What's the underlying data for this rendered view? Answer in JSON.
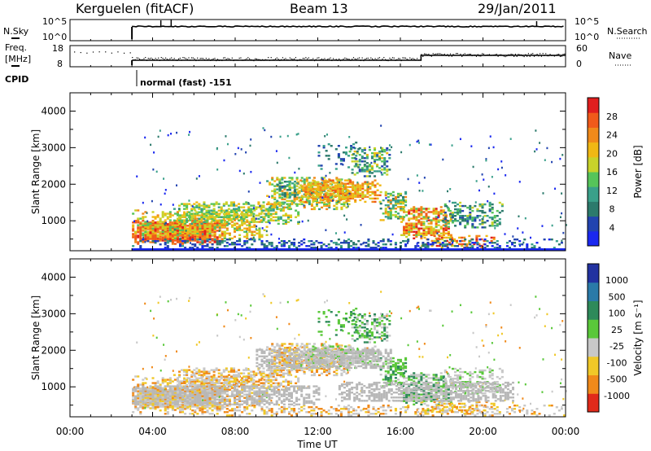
{
  "header": {
    "station": "Kerguelen (fitACF)",
    "beam": "Beam 13",
    "date": "29/Jan/2011"
  },
  "noise_panel": {
    "left_label": "N.Sky",
    "right_label": "N.Search",
    "tick_top": "10^5",
    "tick_bottom": "10^0"
  },
  "freq_panel": {
    "left_label_1": "Freq.",
    "left_label_2": "[MHz]",
    "left_ticks": [
      "18",
      "8"
    ],
    "right_ticks": [
      "60",
      "0"
    ],
    "right_label": "Nave"
  },
  "cpid": {
    "label": "CPID",
    "value": "normal (fast) -151"
  },
  "chart_data": [
    {
      "type": "heatmap",
      "title": "",
      "xlabel": "",
      "ylabel": "Slant Range [km]",
      "xlim": [
        0,
        24
      ],
      "ylim": [
        180,
        4500
      ],
      "y_ticks": [
        "1000",
        "2000",
        "3000",
        "4000"
      ],
      "colorbar": {
        "label": "Power [dB]",
        "ticks": [
          "4",
          "8",
          "12",
          "16",
          "20",
          "24",
          "28"
        ],
        "colors": [
          "#1a28f0",
          "#2244b0",
          "#2c7a6c",
          "#3aa08a",
          "#56c45a",
          "#c8d22a",
          "#f0b814",
          "#f08a1a",
          "#f05a1a",
          "#e01e1e"
        ]
      },
      "data_start_hour": 3
    },
    {
      "type": "heatmap",
      "title": "",
      "xlabel": "Time UT",
      "ylabel": "Slant Range [km]",
      "xlim": [
        0,
        24
      ],
      "ylim": [
        180,
        4500
      ],
      "y_ticks": [
        "1000",
        "2000",
        "3000",
        "4000"
      ],
      "colorbar": {
        "label": "Velocity [m s⁻¹]",
        "ticks": [
          "1000",
          "500",
          "100",
          "25",
          "-25",
          "-100",
          "-500",
          "-1000"
        ],
        "colors": [
          "#2232a0",
          "#2a7aa8",
          "#2e8a5a",
          "#5ac83a",
          "#c8c8c8",
          "#f0c828",
          "#f08a1a",
          "#e02a1a"
        ]
      },
      "data_start_hour": 3
    }
  ],
  "x_axis": {
    "label": "Time UT",
    "ticks": [
      "00:00",
      "04:00",
      "08:00",
      "12:00",
      "16:00",
      "20:00",
      "00:00"
    ]
  },
  "colors": {
    "scatter_ground": "#b8b8b8",
    "axis": "#000000"
  }
}
